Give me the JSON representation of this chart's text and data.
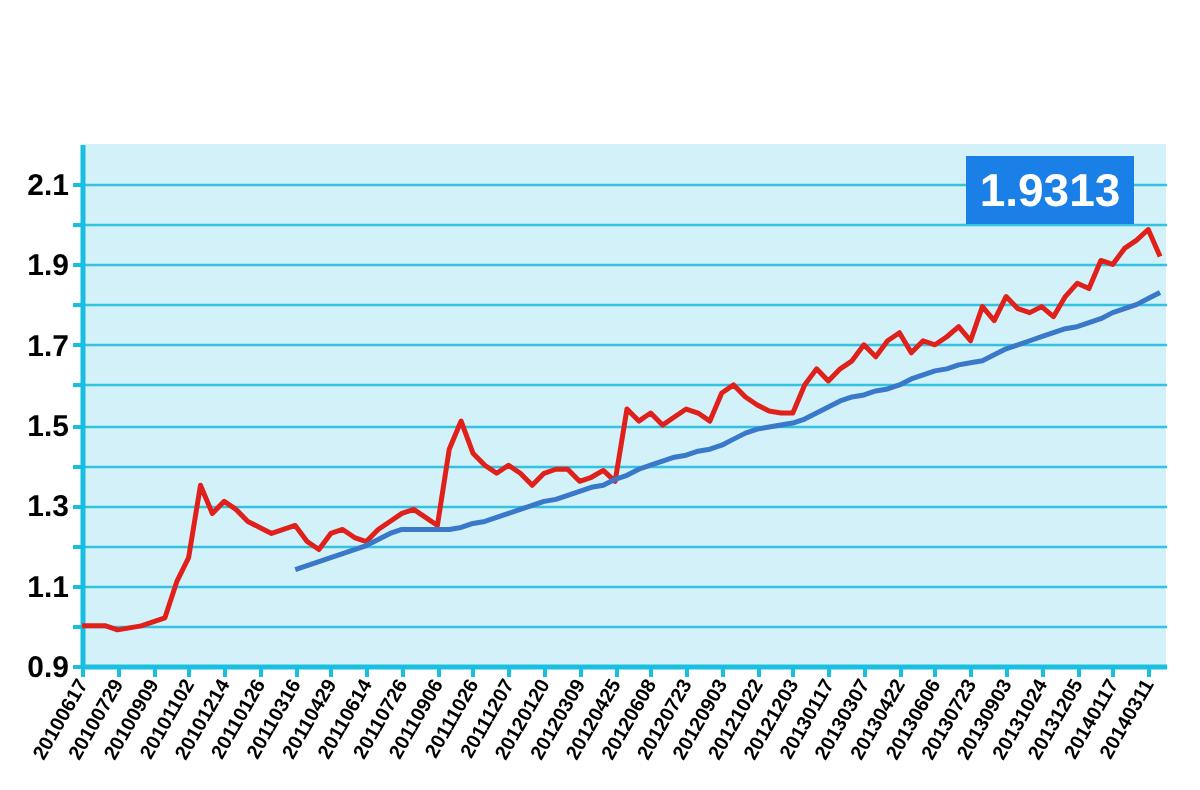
{
  "chart_data": {
    "type": "line",
    "annotations": [
      "1.9313"
    ],
    "categories": [
      "20100617",
      null,
      null,
      "20100729",
      null,
      null,
      "20100909",
      null,
      null,
      "20101102",
      null,
      null,
      "20101214",
      null,
      null,
      "20110126",
      null,
      null,
      "20110316",
      null,
      null,
      "20110429",
      null,
      null,
      "20110614",
      null,
      null,
      "20110726",
      null,
      null,
      "20110906",
      null,
      null,
      "20111026",
      null,
      null,
      "20111207",
      null,
      null,
      "20120120",
      null,
      null,
      "20120309",
      null,
      null,
      "20120425",
      null,
      null,
      "20120608",
      null,
      null,
      "20120723",
      null,
      null,
      "20120903",
      null,
      null,
      "20121022",
      null,
      null,
      "20121203",
      null,
      null,
      "20130117",
      null,
      null,
      "20130307",
      null,
      null,
      "20130422",
      null,
      null,
      "20130606",
      null,
      null,
      "20130723",
      null,
      null,
      "20130903",
      null,
      null,
      "20131024",
      null,
      null,
      "20131205",
      null,
      null,
      "20140117",
      null,
      null,
      "20140311",
      null
    ],
    "ylim": [
      0.9,
      2.2
    ],
    "yticks": [
      0.9,
      {
        "value": 1.0,
        "label": null
      },
      1.1,
      {
        "value": 1.2,
        "label": null
      },
      1.3,
      {
        "value": 1.4,
        "label": null
      },
      1.5,
      {
        "value": 1.6,
        "label": null
      },
      1.7,
      {
        "value": 1.8,
        "label": null
      },
      1.9,
      {
        "value": 2.0,
        "label": null
      },
      2.1
    ],
    "grid": "y",
    "marker": "none",
    "line_style": "solid",
    "series": [
      {
        "color": "#e0201b",
        "values": [
          1.0,
          1.0,
          1.0,
          0.99,
          0.995,
          1.0,
          1.01,
          1.02,
          1.11,
          1.17,
          1.35,
          1.28,
          1.31,
          1.29,
          1.26,
          1.245,
          1.23,
          1.24,
          1.25,
          1.21,
          1.19,
          1.23,
          1.24,
          1.22,
          1.21,
          1.24,
          1.26,
          1.28,
          1.29,
          1.27,
          1.25,
          1.44,
          1.51,
          1.43,
          1.4,
          1.38,
          1.4,
          1.38,
          1.35,
          1.38,
          1.39,
          1.39,
          1.36,
          1.37,
          1.387,
          1.36,
          1.54,
          1.51,
          1.53,
          1.5,
          1.52,
          1.54,
          1.53,
          1.51,
          1.58,
          1.6,
          1.57,
          1.55,
          1.535,
          1.53,
          1.53,
          1.6,
          1.64,
          1.61,
          1.64,
          1.66,
          1.7,
          1.67,
          1.71,
          1.73,
          1.68,
          1.71,
          1.7,
          1.72,
          1.745,
          1.71,
          1.795,
          1.76,
          1.82,
          1.79,
          1.78,
          1.795,
          1.77,
          1.82,
          1.853,
          1.84,
          1.91,
          1.9,
          1.94,
          1.96,
          1.987,
          1.92
        ]
      },
      {
        "color": "#3a78c9",
        "values": [
          null,
          null,
          null,
          null,
          null,
          null,
          null,
          null,
          null,
          null,
          null,
          null,
          null,
          null,
          null,
          null,
          null,
          null,
          1.14,
          1.15,
          1.16,
          1.17,
          1.18,
          1.19,
          1.2,
          1.215,
          1.23,
          1.24,
          1.24,
          1.24,
          1.24,
          1.24,
          1.245,
          1.255,
          1.26,
          1.27,
          1.28,
          1.29,
          1.3,
          1.31,
          1.315,
          1.325,
          1.335,
          1.345,
          1.35,
          1.365,
          1.375,
          1.39,
          1.4,
          1.41,
          1.42,
          1.425,
          1.435,
          1.44,
          1.45,
          1.465,
          1.48,
          1.49,
          1.495,
          1.5,
          1.505,
          1.515,
          1.53,
          1.545,
          1.56,
          1.57,
          1.575,
          1.585,
          1.59,
          1.6,
          1.615,
          1.625,
          1.635,
          1.64,
          1.65,
          1.655,
          1.66,
          1.675,
          1.69,
          1.7,
          1.71,
          1.72,
          1.73,
          1.74,
          1.745,
          1.755,
          1.765,
          1.78,
          1.79,
          1.8,
          1.815,
          1.83
        ]
      }
    ]
  }
}
